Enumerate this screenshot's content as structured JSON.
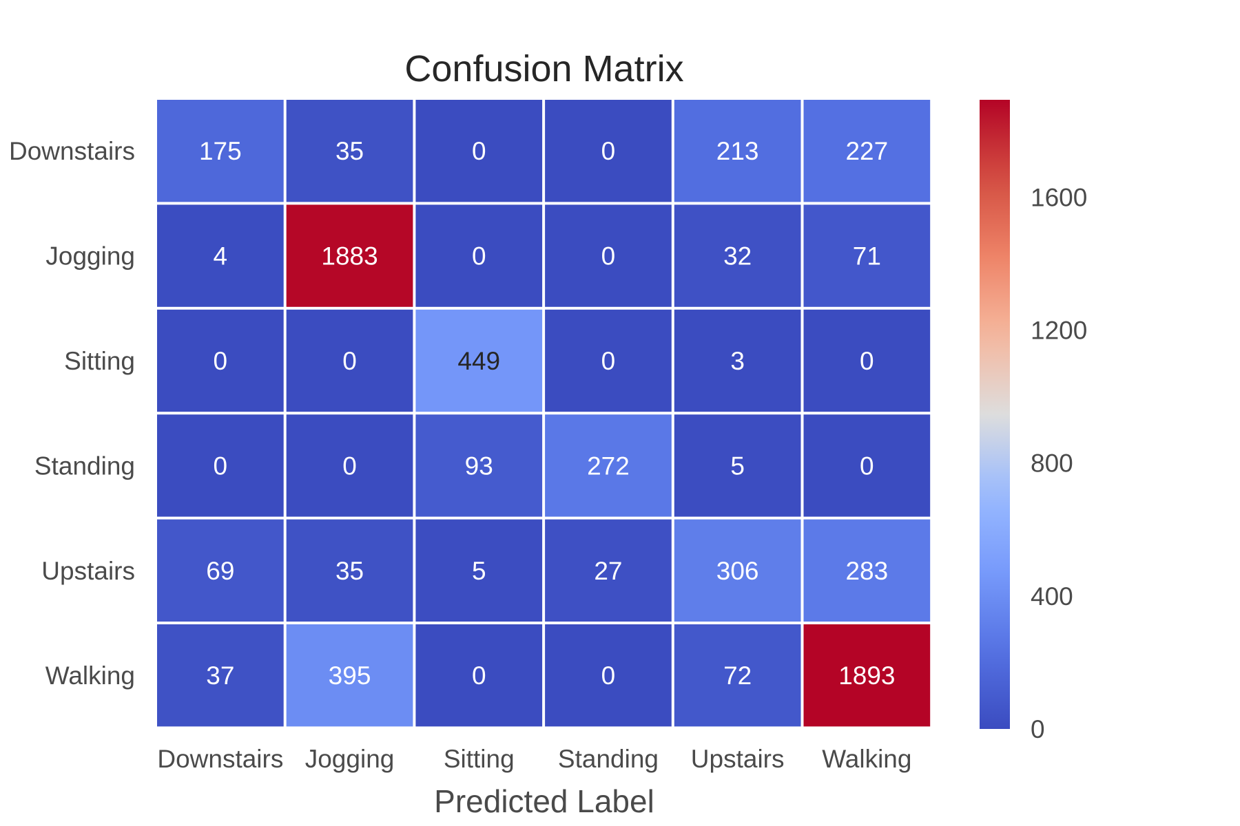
{
  "chart_data": {
    "type": "heatmap",
    "title": "Confusion Matrix",
    "xlabel": "Predicted Label",
    "ylabel": "",
    "x_categories": [
      "Downstairs",
      "Jogging",
      "Sitting",
      "Standing",
      "Upstairs",
      "Walking"
    ],
    "y_categories": [
      "Downstairs",
      "Jogging",
      "Sitting",
      "Standing",
      "Upstairs",
      "Walking"
    ],
    "values": [
      [
        175,
        35,
        0,
        0,
        213,
        227
      ],
      [
        4,
        1883,
        0,
        0,
        32,
        71
      ],
      [
        0,
        0,
        449,
        0,
        3,
        0
      ],
      [
        0,
        0,
        93,
        272,
        5,
        0
      ],
      [
        69,
        35,
        5,
        27,
        306,
        283
      ],
      [
        37,
        395,
        0,
        0,
        72,
        1893
      ]
    ],
    "colormap": "coolwarm",
    "colorbar": {
      "min": 0,
      "max": 1893,
      "ticks": [
        0,
        400,
        800,
        1200,
        1600
      ]
    },
    "grid": false,
    "colors": {
      "low": "#3b4cc0",
      "mid": "#dddddd",
      "high": "#b40426"
    }
  }
}
